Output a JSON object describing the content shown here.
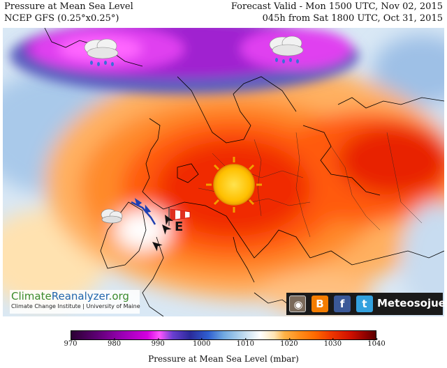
{
  "header": {
    "title": "Pressure at Mean Sea Level",
    "model": "NCEP GFS (0.25°x0.25°)",
    "valid": "Forecast Valid - Mon 1500 UTC, Nov 02, 2015",
    "run": "045h from Sat 1800 UTC, Oct 31, 2015"
  },
  "map": {
    "symbols": {
      "high_pressure_label": "E",
      "sun": "sun-icon",
      "rain_clouds": [
        "rain-cloud-icon",
        "rain-cloud-icon"
      ],
      "cloud": "cloud-icon",
      "windsock": "windsock-icon",
      "wind_arrows": [
        "wind-arrow-icon",
        "wind-arrow-icon",
        "wind-arrow-icon"
      ],
      "front": "cold-front-icon"
    }
  },
  "logos": {
    "climate_reanalyzer_part1": "Climate",
    "climate_reanalyzer_part2": "Reanalyzer",
    "climate_reanalyzer_part3": ".org",
    "institute": "Climate Change Institute | University of Maine",
    "social": {
      "icons": [
        "instagram-icon",
        "blogger-icon",
        "facebook-icon",
        "twitter-icon"
      ],
      "name": "Meteosojuela"
    }
  },
  "colorbar": {
    "ticks": [
      "970",
      "980",
      "990",
      "1000",
      "1010",
      "1020",
      "1030",
      "1040"
    ],
    "min": 970,
    "max": 1040,
    "label": "Pressure at Mean Sea Level (mbar)"
  }
}
